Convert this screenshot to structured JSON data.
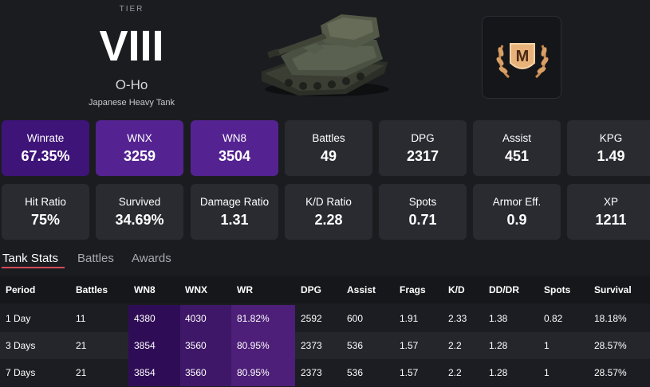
{
  "tier": {
    "label": "TIER",
    "value": "VIII"
  },
  "tank": {
    "name": "O-Ho",
    "type": "Japanese Heavy Tank"
  },
  "badge": {
    "letter": "M",
    "name": "mastery-badge"
  },
  "stats_row1": [
    {
      "label": "Winrate",
      "value": "67.35%"
    },
    {
      "label": "WNX",
      "value": "3259"
    },
    {
      "label": "WN8",
      "value": "3504"
    },
    {
      "label": "Battles",
      "value": "49"
    },
    {
      "label": "DPG",
      "value": "2317"
    },
    {
      "label": "Assist",
      "value": "451"
    },
    {
      "label": "KPG",
      "value": "1.49"
    }
  ],
  "stats_row2": [
    {
      "label": "Hit Ratio",
      "value": "75%"
    },
    {
      "label": "Survived",
      "value": "34.69%"
    },
    {
      "label": "Damage Ratio",
      "value": "1.31"
    },
    {
      "label": "K/D Ratio",
      "value": "2.28"
    },
    {
      "label": "Spots",
      "value": "0.71"
    },
    {
      "label": "Armor Eff.",
      "value": "0.9"
    },
    {
      "label": "XP",
      "value": "1211"
    }
  ],
  "tabs": [
    {
      "label": "Tank Stats",
      "active": true
    },
    {
      "label": "Battles",
      "active": false
    },
    {
      "label": "Awards",
      "active": false
    }
  ],
  "table": {
    "headers": [
      "Period",
      "Battles",
      "WN8",
      "WNX",
      "WR",
      "DPG",
      "Assist",
      "Frags",
      "K/D",
      "DD/DR",
      "Spots",
      "Survival"
    ],
    "rows": [
      [
        "1 Day",
        "11",
        "4380",
        "4030",
        "81.82%",
        "2592",
        "600",
        "1.91",
        "2.33",
        "1.38",
        "0.82",
        "18.18%"
      ],
      [
        "3 Days",
        "21",
        "3854",
        "3560",
        "80.95%",
        "2373",
        "536",
        "1.57",
        "2.2",
        "1.28",
        "1",
        "28.57%"
      ],
      [
        "7 Days",
        "21",
        "3854",
        "3560",
        "80.95%",
        "2373",
        "536",
        "1.57",
        "2.2",
        "1.28",
        "1",
        "28.57%"
      ]
    ]
  },
  "colors": {
    "background": "#1b1c20",
    "card": "#2a2b31",
    "winrate_card": "#3e1478",
    "rating_card": "#542391",
    "tab_underline": "#d44a5a"
  }
}
